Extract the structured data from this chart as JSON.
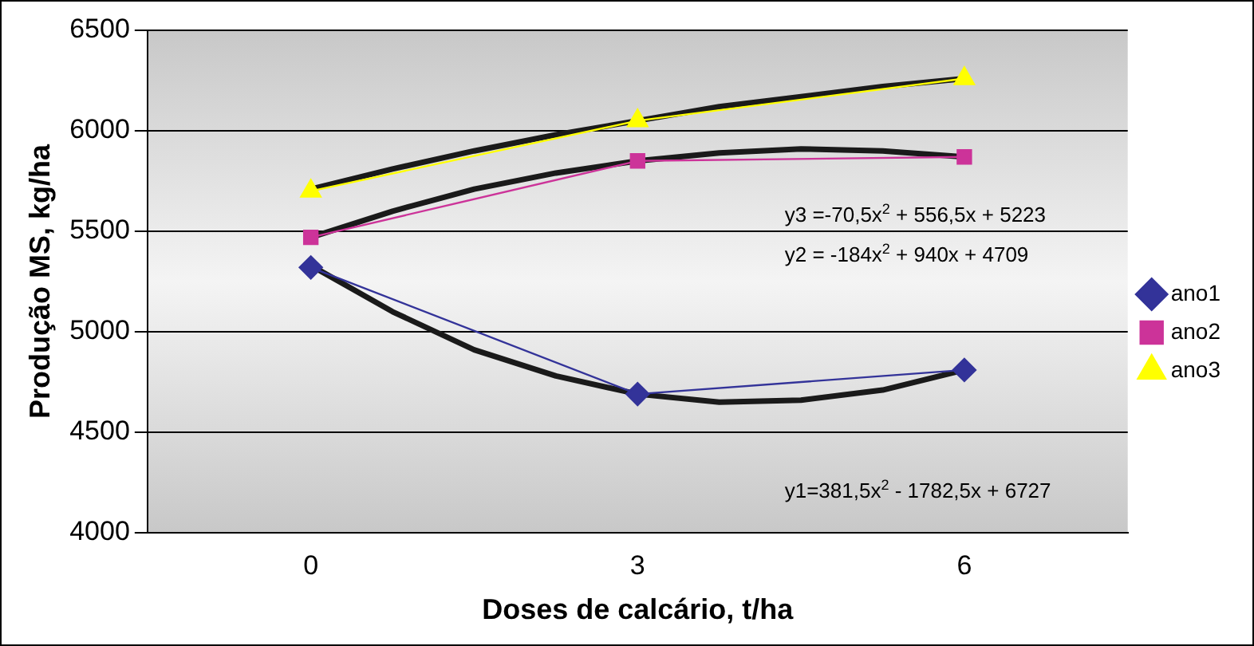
{
  "chart_data": {
    "type": "line",
    "xlabel": "Doses de calcário, t/ha",
    "ylabel": "Produção MS, kg/ha",
    "x": [
      0,
      3,
      6
    ],
    "xlim": [
      -1.5,
      7.5
    ],
    "xticks": [
      0,
      3,
      6
    ],
    "ylim": [
      4000,
      6500
    ],
    "yticks": [
      4000,
      4500,
      5000,
      5500,
      6000,
      6500
    ],
    "grid": "y",
    "legend": "right",
    "line_style": "solid",
    "series": [
      {
        "name": "ano1",
        "color": "#333399",
        "marker": "diamond",
        "values": [
          5320,
          4690,
          4810
        ]
      },
      {
        "name": "ano2",
        "color": "#cc3399",
        "marker": "square",
        "values": [
          5470,
          5850,
          5870
        ]
      },
      {
        "name": "ano3",
        "color": "#ffff00",
        "marker": "triangle",
        "values": [
          5700,
          6050,
          6260
        ]
      },
      {
        "type": "line",
        "color": "#1a1a1a",
        "marker": "none",
        "x": [
          0,
          0.75,
          1.5,
          2.25,
          3,
          3.75,
          4.5,
          5.25,
          6
        ],
        "values": [
          5330,
          5100,
          4910,
          4780,
          4690,
          4650,
          4660,
          4710,
          4810
        ]
      },
      {
        "type": "line",
        "color": "#1a1a1a",
        "marker": "none",
        "x": [
          0,
          0.75,
          1.5,
          2.25,
          3,
          3.75,
          4.5,
          5.25,
          6
        ],
        "values": [
          5470,
          5600,
          5710,
          5790,
          5850,
          5890,
          5910,
          5900,
          5870
        ]
      },
      {
        "type": "line",
        "color": "#1a1a1a",
        "marker": "none",
        "x": [
          0,
          0.75,
          1.5,
          2.25,
          3,
          3.75,
          4.5,
          5.25,
          6
        ],
        "values": [
          5710,
          5810,
          5900,
          5980,
          6050,
          6120,
          6170,
          6220,
          6260
        ]
      }
    ],
    "annotations": [
      "y3 =-70,5x$^{2}$ + 556,5x + 5223",
      "y2 = -184x$^{2}$ + 940x + 4709",
      "y1=381,5x$^{2}$ - 1782,5x + 6727"
    ]
  }
}
